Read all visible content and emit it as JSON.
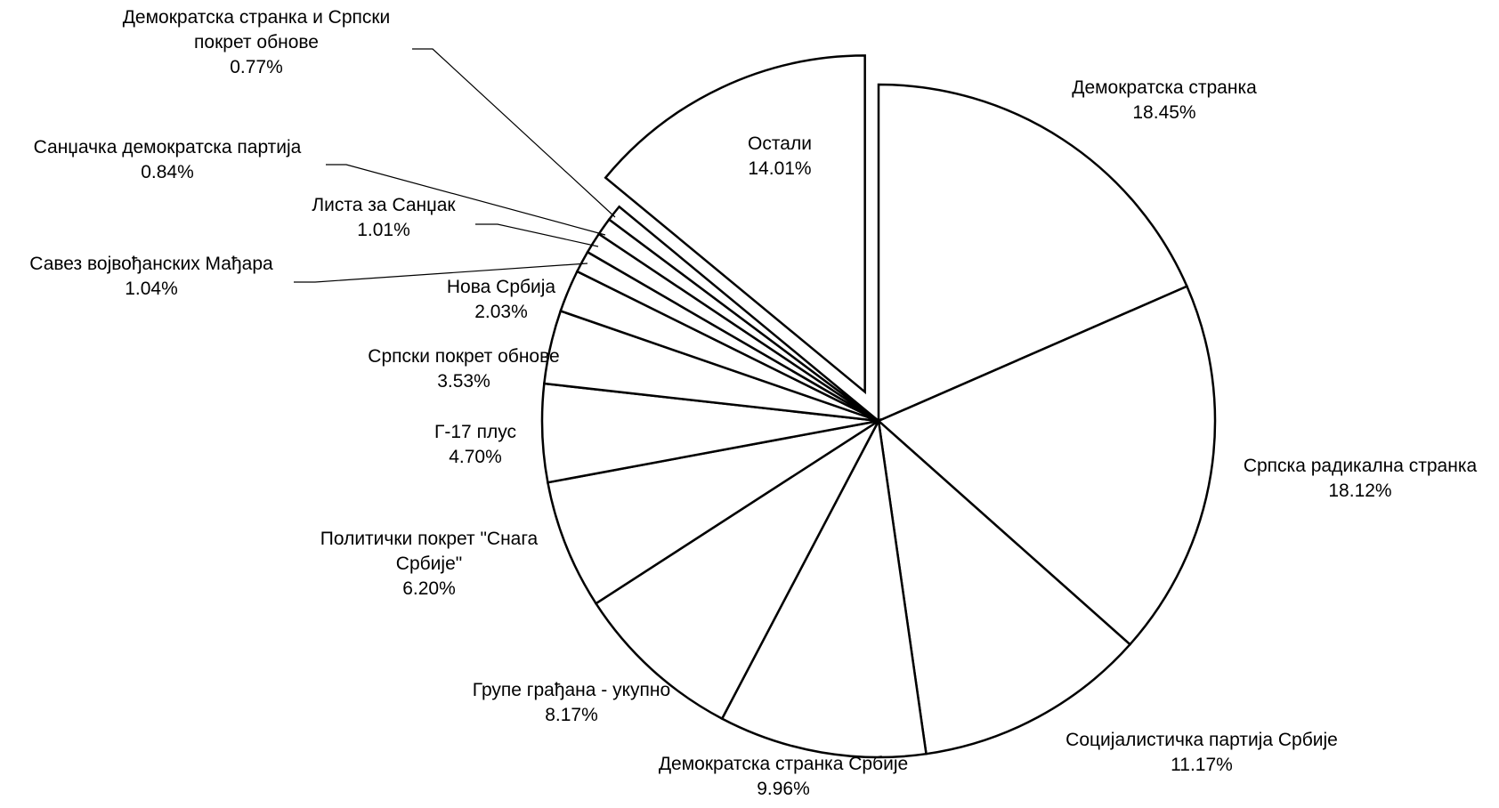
{
  "chart_data": {
    "type": "pie",
    "title": "",
    "slices": [
      {
        "label": [
          "Демократска странка"
        ],
        "value_label": "18.45%",
        "value": 18.45
      },
      {
        "label": [
          "Српска радикална странка"
        ],
        "value_label": "18.12%",
        "value": 18.12
      },
      {
        "label": [
          "Социјалистичка партија Србије"
        ],
        "value_label": "11.17%",
        "value": 11.17
      },
      {
        "label": [
          "Демократска странка Србије"
        ],
        "value_label": "9.96%",
        "value": 9.96
      },
      {
        "label": [
          "Групе грађана - укупно"
        ],
        "value_label": "8.17%",
        "value": 8.17
      },
      {
        "label": [
          "Политички покрет \"Снага",
          "Србије\""
        ],
        "value_label": "6.20%",
        "value": 6.2
      },
      {
        "label": [
          "Г-17 плус"
        ],
        "value_label": "4.70%",
        "value": 4.7
      },
      {
        "label": [
          "Српски покрет обнове"
        ],
        "value_label": "3.53%",
        "value": 3.53
      },
      {
        "label": [
          "Нова Србија"
        ],
        "value_label": "2.03%",
        "value": 2.03
      },
      {
        "label": [
          "Савез војвођанских Мађара"
        ],
        "value_label": "1.04%",
        "value": 1.04
      },
      {
        "label": [
          "Листа за Санџак"
        ],
        "value_label": "1.01%",
        "value": 1.01
      },
      {
        "label": [
          "Санџачка демократска партија"
        ],
        "value_label": "0.84%",
        "value": 0.84
      },
      {
        "label": [
          "Демократска странка и Српски",
          "покрет обнове"
        ],
        "value_label": "0.77%",
        "value": 0.77
      },
      {
        "label": [
          "Остали"
        ],
        "value_label": "14.01%",
        "value": 14.01,
        "exploded": true
      }
    ],
    "start_angle": "12 o'clock",
    "direction": "clockwise",
    "legend": "none",
    "colors": {
      "fill": "#ffffff",
      "stroke": "#000000"
    }
  }
}
